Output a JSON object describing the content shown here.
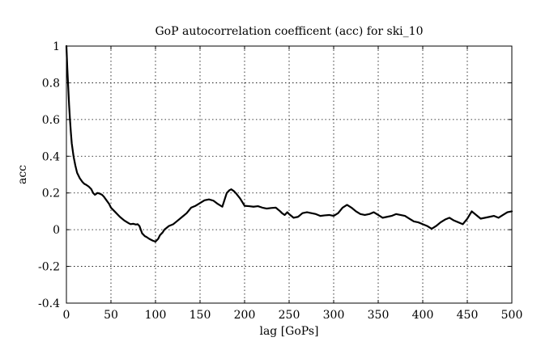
{
  "chart_data": {
    "type": "line",
    "title": "GoP autocorrelation coefficent (acc) for ski_10",
    "xlabel": "lag [GoPs]",
    "ylabel": "acc",
    "xlim": [
      0,
      500
    ],
    "ylim": [
      -0.4,
      1
    ],
    "grid": true,
    "legend": "none",
    "line_color": "#000000",
    "x_ticks": [
      0,
      50,
      100,
      150,
      200,
      250,
      300,
      350,
      400,
      450,
      500
    ],
    "y_ticks": [
      -0.4,
      -0.2,
      0,
      0.2,
      0.4,
      0.6,
      0.8,
      1
    ],
    "x_tick_labels": [
      "0",
      "50",
      "100",
      "150",
      "200",
      "250",
      "300",
      "350",
      "400",
      "450",
      "500"
    ],
    "y_tick_labels": [
      "-0.4",
      "-0.2",
      "0",
      "0.2",
      "0.4",
      "0.6",
      "0.8",
      "1"
    ],
    "series": [
      {
        "x": [
          0,
          1,
          2,
          3,
          4,
          5,
          6,
          8,
          10,
          12,
          15,
          18,
          20,
          22,
          25,
          28,
          30,
          32,
          35,
          38,
          40,
          42,
          45,
          48,
          50,
          55,
          60,
          65,
          70,
          72,
          75,
          78,
          80,
          82,
          85,
          88,
          90,
          93,
          95,
          97,
          100,
          103,
          105,
          108,
          110,
          115,
          120,
          125,
          130,
          135,
          140,
          145,
          150,
          155,
          160,
          165,
          170,
          175,
          180,
          183,
          185,
          188,
          190,
          195,
          200,
          205,
          210,
          215,
          220,
          225,
          230,
          235,
          240,
          242,
          245,
          248,
          250,
          255,
          260,
          265,
          270,
          275,
          280,
          285,
          290,
          295,
          300,
          305,
          310,
          315,
          320,
          325,
          330,
          335,
          340,
          345,
          350,
          355,
          360,
          365,
          370,
          375,
          380,
          385,
          390,
          395,
          400,
          405,
          410,
          415,
          420,
          425,
          430,
          435,
          440,
          445,
          450,
          455,
          460,
          465,
          470,
          475,
          480,
          485,
          490,
          495,
          500
        ],
        "values": [
          1.0,
          0.88,
          0.78,
          0.68,
          0.6,
          0.53,
          0.47,
          0.4,
          0.35,
          0.31,
          0.28,
          0.26,
          0.25,
          0.245,
          0.235,
          0.22,
          0.2,
          0.19,
          0.2,
          0.195,
          0.19,
          0.18,
          0.16,
          0.14,
          0.12,
          0.095,
          0.07,
          0.05,
          0.035,
          0.03,
          0.032,
          0.028,
          0.03,
          0.02,
          -0.02,
          -0.035,
          -0.04,
          -0.05,
          -0.055,
          -0.06,
          -0.065,
          -0.05,
          -0.03,
          -0.015,
          0.0,
          0.02,
          0.03,
          0.05,
          0.07,
          0.09,
          0.12,
          0.13,
          0.145,
          0.16,
          0.165,
          0.158,
          0.14,
          0.125,
          0.2,
          0.215,
          0.22,
          0.21,
          0.2,
          0.17,
          0.13,
          0.128,
          0.125,
          0.128,
          0.12,
          0.115,
          0.118,
          0.12,
          0.1,
          0.09,
          0.08,
          0.095,
          0.085,
          0.065,
          0.07,
          0.09,
          0.095,
          0.09,
          0.085,
          0.075,
          0.078,
          0.08,
          0.075,
          0.09,
          0.12,
          0.135,
          0.12,
          0.1,
          0.085,
          0.08,
          0.085,
          0.095,
          0.08,
          0.065,
          0.07,
          0.075,
          0.085,
          0.08,
          0.075,
          0.06,
          0.045,
          0.04,
          0.03,
          0.02,
          0.005,
          0.02,
          0.04,
          0.055,
          0.065,
          0.05,
          0.04,
          0.03,
          0.06,
          0.1,
          0.08,
          0.06,
          0.065,
          0.07,
          0.075,
          0.065,
          0.08,
          0.095,
          0.1
        ]
      }
    ]
  }
}
